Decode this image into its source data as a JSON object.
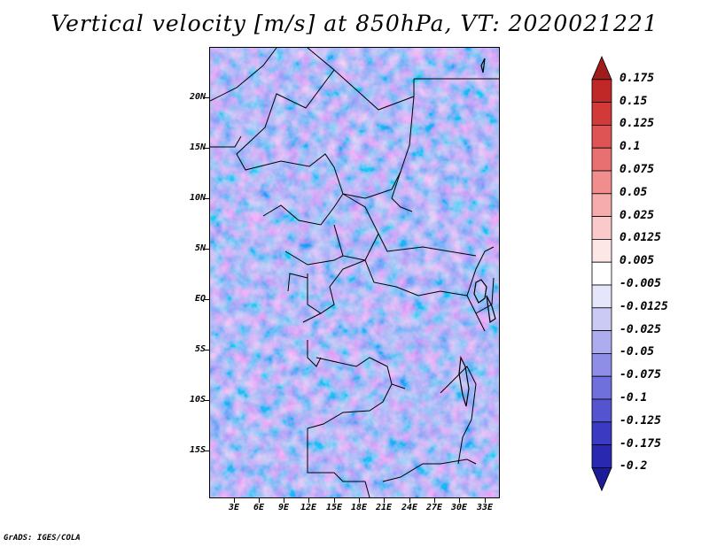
{
  "title": "Vertical velocity [m/s] at 850hPa, VT: 2020021221",
  "footer": "GrADS: IGES/COLA",
  "lat_labels": [
    "20N",
    "15N",
    "10N",
    "5N",
    "EQ",
    "5S",
    "10S",
    "15S"
  ],
  "lon_labels": [
    "3E",
    "6E",
    "9E",
    "12E",
    "15E",
    "18E",
    "21E",
    "24E",
    "27E",
    "30E",
    "33E"
  ],
  "colorbar": {
    "labels": [
      "0.175",
      "0.15",
      "0.125",
      "0.1",
      "0.075",
      "0.05",
      "0.025",
      "0.0125",
      "0.005",
      "-0.005",
      "-0.0125",
      "-0.025",
      "-0.05",
      "-0.075",
      "-0.1",
      "-0.125",
      "-0.175",
      "-0.2"
    ],
    "colors": [
      "#a01c1c",
      "#c02828",
      "#d23a3a",
      "#de5454",
      "#e87070",
      "#f08e8e",
      "#f6acac",
      "#facaca",
      "#fde6e6",
      "#ffffff",
      "#e6e6fb",
      "#cacaf5",
      "#acacee",
      "#8e8ee6",
      "#7070dc",
      "#5454d0",
      "#3a3ac2",
      "#2828b0",
      "#1c1c98"
    ]
  }
}
